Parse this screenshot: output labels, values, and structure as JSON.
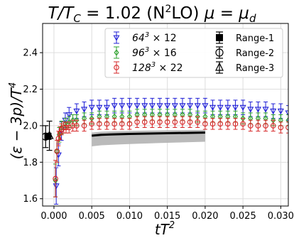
{
  "chart_data": {
    "type": "scatter",
    "title": "T/T_C = 1.02 (N²LO) μ = μ_d",
    "title_parts": {
      "main": "T/T",
      "sub": "C",
      "mid": " = 1.02 (N",
      "sup": "2",
      "end": "LO) ",
      "mu": "μ = μ",
      "mu_sub": "d"
    },
    "xlabel": "tT²",
    "xlabel_parts": {
      "base": "tT",
      "sup": "2"
    },
    "ylabel": "(ε − 3p)/T⁴",
    "ylabel_parts": {
      "base": "(ε − 3p)/T",
      "sup": "4"
    },
    "xlim": [
      -0.0015,
      0.031
    ],
    "ylim": [
      1.56,
      2.56
    ],
    "xticks": [
      "0.000",
      "0.005",
      "0.010",
      "0.015",
      "0.020",
      "0.025",
      "0.030"
    ],
    "xtick_values": [
      0.0,
      0.005,
      0.01,
      0.015,
      0.02,
      0.025,
      0.03
    ],
    "yticks": [
      "1.6",
      "1.8",
      "2.0",
      "2.2",
      "2.4"
    ],
    "ytick_values": [
      1.6,
      1.8,
      2.0,
      2.2,
      2.4
    ],
    "grid": true,
    "legend_position": "top-right",
    "legend": {
      "series": [
        {
          "label": "64³ × 12",
          "base": "64",
          "sup": "3",
          "rest": " × 12",
          "color": "#1f1fd6",
          "marker": "triangle-down"
        },
        {
          "label": "96³ × 16",
          "base": "96",
          "sup": "3",
          "rest": " × 16",
          "color": "#2ca02c",
          "marker": "diamond"
        },
        {
          "label": "128³ × 22",
          "base": "128",
          "sup": "3",
          "rest": " × 22",
          "color": "#d62728",
          "marker": "circle"
        }
      ],
      "ranges": [
        {
          "label": "Range-1",
          "marker": "square-filled"
        },
        {
          "label": "Range-2",
          "marker": "circle-open"
        },
        {
          "label": "Range-3",
          "marker": "triangle-open"
        }
      ]
    },
    "series": [
      {
        "name": "64³ × 12",
        "color": "#1f1fd6",
        "marker": "triangle-down",
        "x": [
          0.0003,
          0.0006,
          0.001,
          0.0015,
          0.002,
          0.003,
          0.004,
          0.005,
          0.006,
          0.007,
          0.008,
          0.009,
          0.01,
          0.011,
          0.012,
          0.013,
          0.014,
          0.015,
          0.016,
          0.017,
          0.018,
          0.019,
          0.02,
          0.021,
          0.022,
          0.023,
          0.024,
          0.025,
          0.026,
          0.027,
          0.028,
          0.029,
          0.03,
          0.031
        ],
        "y": [
          1.67,
          1.84,
          1.97,
          2.03,
          2.06,
          2.08,
          2.09,
          2.1,
          2.1,
          2.1,
          2.11,
          2.11,
          2.11,
          2.11,
          2.11,
          2.11,
          2.11,
          2.11,
          2.11,
          2.11,
          2.11,
          2.11,
          2.11,
          2.1,
          2.1,
          2.1,
          2.1,
          2.1,
          2.09,
          2.09,
          2.09,
          2.08,
          2.08,
          2.07
        ],
        "err": [
          0.1,
          0.06,
          0.05,
          0.04,
          0.04,
          0.04,
          0.04,
          0.04,
          0.04,
          0.04,
          0.04,
          0.04,
          0.04,
          0.04,
          0.04,
          0.04,
          0.04,
          0.04,
          0.04,
          0.04,
          0.04,
          0.04,
          0.04,
          0.04,
          0.04,
          0.04,
          0.04,
          0.04,
          0.04,
          0.04,
          0.04,
          0.04,
          0.04,
          0.04
        ]
      },
      {
        "name": "96³ × 16",
        "color": "#2ca02c",
        "marker": "diamond",
        "x": [
          0.0002,
          0.0004,
          0.0007,
          0.001,
          0.0015,
          0.002,
          0.0025,
          0.003,
          0.004,
          0.005,
          0.006,
          0.007,
          0.008,
          0.009,
          0.01,
          0.011,
          0.012,
          0.013,
          0.014,
          0.015,
          0.016,
          0.017,
          0.018,
          0.019,
          0.02,
          0.021,
          0.022,
          0.023,
          0.024,
          0.025,
          0.026,
          0.027,
          0.028,
          0.029,
          0.03,
          0.031
        ],
        "y": [
          1.7,
          1.86,
          1.95,
          1.99,
          2.01,
          2.02,
          2.03,
          2.03,
          2.04,
          2.04,
          2.05,
          2.05,
          2.05,
          2.05,
          2.05,
          2.06,
          2.06,
          2.06,
          2.06,
          2.06,
          2.06,
          2.06,
          2.06,
          2.05,
          2.05,
          2.05,
          2.05,
          2.05,
          2.05,
          2.04,
          2.04,
          2.04,
          2.04,
          2.03,
          2.03,
          2.03
        ],
        "err": [
          0.09,
          0.06,
          0.04,
          0.035,
          0.03,
          0.03,
          0.03,
          0.03,
          0.03,
          0.03,
          0.03,
          0.03,
          0.03,
          0.03,
          0.03,
          0.03,
          0.03,
          0.03,
          0.03,
          0.03,
          0.03,
          0.03,
          0.03,
          0.03,
          0.03,
          0.03,
          0.03,
          0.03,
          0.03,
          0.03,
          0.03,
          0.03,
          0.03,
          0.03,
          0.03,
          0.03
        ]
      },
      {
        "name": "128³ × 22",
        "color": "#d62728",
        "marker": "circle",
        "x": [
          0.0002,
          0.0004,
          0.0006,
          0.0008,
          0.001,
          0.0013,
          0.0016,
          0.002,
          0.0025,
          0.003,
          0.004,
          0.005,
          0.006,
          0.007,
          0.008,
          0.009,
          0.01,
          0.011,
          0.012,
          0.013,
          0.014,
          0.015,
          0.016,
          0.017,
          0.018,
          0.019,
          0.02,
          0.021,
          0.022,
          0.023,
          0.024,
          0.025,
          0.026,
          0.027,
          0.028,
          0.029,
          0.03,
          0.031
        ],
        "y": [
          1.71,
          1.86,
          1.93,
          1.96,
          1.98,
          1.99,
          1.99,
          1.99,
          2.0,
          2.0,
          2.0,
          2.01,
          2.01,
          2.01,
          2.01,
          2.01,
          2.01,
          2.02,
          2.02,
          2.02,
          2.02,
          2.02,
          2.02,
          2.02,
          2.02,
          2.02,
          2.01,
          2.01,
          2.01,
          2.01,
          2.01,
          2.01,
          2.0,
          2.0,
          2.0,
          2.0,
          1.99,
          1.99
        ],
        "err": [
          0.1,
          0.06,
          0.04,
          0.035,
          0.03,
          0.03,
          0.03,
          0.03,
          0.03,
          0.03,
          0.03,
          0.03,
          0.03,
          0.03,
          0.03,
          0.03,
          0.03,
          0.03,
          0.03,
          0.03,
          0.03,
          0.03,
          0.03,
          0.03,
          0.03,
          0.03,
          0.03,
          0.03,
          0.03,
          0.03,
          0.03,
          0.03,
          0.03,
          0.03,
          0.03,
          0.03,
          0.03,
          0.03
        ]
      }
    ],
    "range_band": {
      "x": [
        0.005,
        0.02
      ],
      "y_center_start": 1.945,
      "y_center_end": 1.962,
      "half_width_start": 0.058,
      "half_width_end": 0.05,
      "fill": "#b3b3b3"
    },
    "extrapolated": [
      {
        "name": "Range-1",
        "x": -0.0008,
        "y": 1.942,
        "err": 0.015,
        "marker": "square-filled"
      },
      {
        "name": "Range-2",
        "x": -0.0011,
        "y": 1.94,
        "err": 0.06,
        "marker": "circle-open"
      },
      {
        "name": "Range-3",
        "x": -0.0006,
        "y": 1.945,
        "err": 0.08,
        "marker": "triangle-open"
      }
    ]
  }
}
